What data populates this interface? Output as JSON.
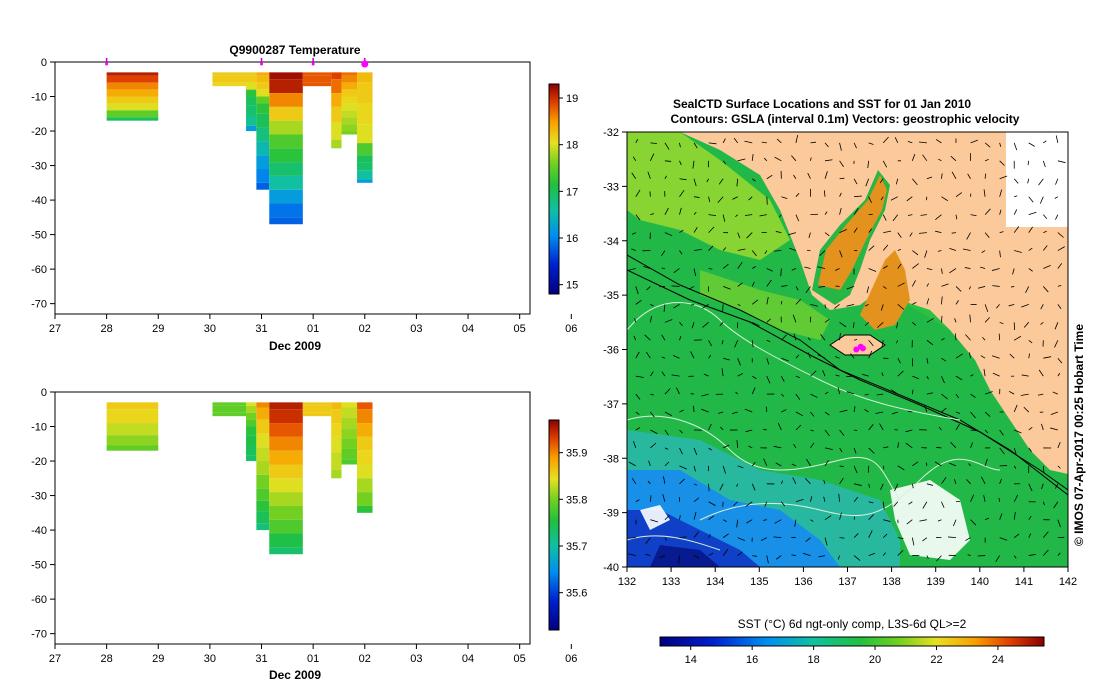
{
  "chart_data": [
    {
      "type": "heatmap",
      "id": "temperature-profile",
      "title": "Q9900287  Temperature",
      "xlabel": "Dec 2009",
      "ylabel": "",
      "x_ticks": [
        "27",
        "28",
        "29",
        "30",
        "31",
        "01",
        "02",
        "03",
        "04",
        "05",
        "06"
      ],
      "y_ticks": [
        0,
        -10,
        -20,
        -30,
        -40,
        -50,
        -60,
        -70
      ],
      "ylim": [
        -73,
        0
      ],
      "surface_markers": [
        28,
        31,
        32,
        33
      ],
      "colorbar": {
        "ticks": [
          15,
          16,
          17,
          18,
          19
        ],
        "range": [
          14.8,
          19.3
        ]
      },
      "profiles": [
        {
          "x0": 28.0,
          "x1": 29.0,
          "depths": [
            3,
            5,
            7,
            9,
            11,
            13,
            15,
            17
          ],
          "values": [
            19.1,
            18.9,
            18.6,
            18.4,
            18.2,
            18.0,
            17.5,
            17.0
          ]
        },
        {
          "x0": 30.05,
          "x1": 30.7,
          "depths": [
            3,
            5,
            7
          ],
          "values": [
            18.2,
            18.2,
            18.1
          ]
        },
        {
          "x0": 30.7,
          "x1": 30.9,
          "depths": [
            3,
            5,
            7,
            9,
            11,
            14,
            17,
            20
          ],
          "values": [
            18.2,
            18.2,
            18.0,
            17.2,
            17.0,
            16.9,
            16.7,
            16.2
          ]
        },
        {
          "x0": 30.9,
          "x1": 31.15,
          "depths": [
            3,
            5,
            7,
            9,
            11,
            13,
            17,
            21,
            25,
            29,
            33,
            37
          ],
          "values": [
            18.4,
            18.3,
            18.2,
            18.0,
            17.5,
            17.2,
            17.0,
            16.8,
            16.5,
            16.2,
            16.0,
            15.8
          ]
        },
        {
          "x0": 31.15,
          "x1": 31.8,
          "depths": [
            3,
            7,
            11,
            15,
            19,
            23,
            27,
            31,
            35,
            39,
            43,
            47
          ],
          "values": [
            19.2,
            19.1,
            18.6,
            18.2,
            17.8,
            17.4,
            17.2,
            16.9,
            16.6,
            16.2,
            15.9,
            15.8
          ]
        },
        {
          "x0": 31.8,
          "x1": 32.35,
          "depths": [
            3,
            5,
            7
          ],
          "values": [
            18.8,
            18.8,
            18.8
          ]
        },
        {
          "x0": 32.35,
          "x1": 32.55,
          "depths": [
            3,
            7,
            11,
            15,
            20,
            25
          ],
          "values": [
            18.9,
            18.7,
            18.4,
            18.2,
            18.0,
            17.8
          ]
        },
        {
          "x0": 32.55,
          "x1": 32.85,
          "depths": [
            3,
            5,
            7,
            9,
            11,
            13,
            15,
            17,
            19,
            21
          ],
          "values": [
            18.7,
            18.6,
            18.4,
            18.2,
            18.1,
            18.0,
            17.9,
            17.8,
            17.7,
            17.6
          ]
        },
        {
          "x0": 32.85,
          "x1": 33.15,
          "depths": [
            3,
            9,
            15,
            21,
            26,
            28,
            30,
            33,
            35
          ],
          "values": [
            18.3,
            18.2,
            18.1,
            18.0,
            17.4,
            17.0,
            16.9,
            16.6,
            16.2
          ]
        }
      ]
    },
    {
      "type": "heatmap",
      "id": "salinity-profile",
      "title": "",
      "xlabel": "Dec 2009",
      "ylabel": "",
      "x_ticks": [
        "27",
        "28",
        "29",
        "30",
        "31",
        "01",
        "02",
        "03",
        "04",
        "05",
        "06"
      ],
      "y_ticks": [
        0,
        -10,
        -20,
        -30,
        -40,
        -50,
        -60,
        -70
      ],
      "ylim": [
        -73,
        0
      ],
      "colorbar": {
        "ticks": [
          35.6,
          35.7,
          35.8,
          35.9
        ],
        "range": [
          35.52,
          35.97
        ]
      },
      "profiles": [
        {
          "x0": 28.0,
          "x1": 29.0,
          "depths": [
            3,
            7,
            11,
            14,
            17
          ],
          "values": [
            35.86,
            35.85,
            35.83,
            35.81,
            35.79
          ]
        },
        {
          "x0": 30.05,
          "x1": 30.7,
          "depths": [
            3,
            5,
            7
          ],
          "values": [
            35.79,
            35.79,
            35.79
          ]
        },
        {
          "x0": 30.7,
          "x1": 30.9,
          "depths": [
            3,
            5,
            7,
            9,
            11,
            14,
            17,
            20
          ],
          "values": [
            35.84,
            35.82,
            35.8,
            35.78,
            35.76,
            35.75,
            35.74,
            35.73
          ]
        },
        {
          "x0": 30.9,
          "x1": 31.15,
          "depths": [
            3,
            6,
            10,
            14,
            18,
            22,
            26,
            30,
            33,
            36,
            40
          ],
          "values": [
            35.9,
            35.88,
            35.86,
            35.84,
            35.83,
            35.82,
            35.8,
            35.78,
            35.76,
            35.74,
            35.72
          ]
        },
        {
          "x0": 31.15,
          "x1": 31.8,
          "depths": [
            3,
            7,
            11,
            15,
            19,
            23,
            27,
            31,
            35,
            39,
            43,
            47
          ],
          "values": [
            35.95,
            35.94,
            35.92,
            35.9,
            35.88,
            35.86,
            35.84,
            35.82,
            35.8,
            35.78,
            35.75,
            35.73
          ]
        },
        {
          "x0": 31.8,
          "x1": 32.35,
          "depths": [
            3,
            5,
            7
          ],
          "values": [
            35.86,
            35.86,
            35.86
          ]
        },
        {
          "x0": 32.35,
          "x1": 32.55,
          "depths": [
            3,
            7,
            11,
            15,
            20,
            25
          ],
          "values": [
            35.87,
            35.86,
            35.85,
            35.84,
            35.83,
            35.82
          ]
        },
        {
          "x0": 32.55,
          "x1": 32.85,
          "depths": [
            3,
            6,
            9,
            12,
            15,
            18,
            21
          ],
          "values": [
            35.84,
            35.83,
            35.82,
            35.81,
            35.8,
            35.79,
            35.78
          ]
        },
        {
          "x0": 32.85,
          "x1": 33.15,
          "depths": [
            3,
            7,
            11,
            15,
            19,
            23,
            27,
            31,
            35
          ],
          "values": [
            35.92,
            35.9,
            35.88,
            35.86,
            35.85,
            35.84,
            35.82,
            35.8,
            35.76
          ]
        }
      ]
    },
    {
      "type": "heatmap",
      "id": "sst-map",
      "title_line1": "SealCTD Surface Locations and SST for 01 Jan 2010",
      "title_line2": "Contours: GSLA (interval 0.1m) Vectors: geostrophic velocity",
      "x_ticks": [
        "132",
        "133",
        "134",
        "135",
        "136",
        "137",
        "138",
        "139",
        "140",
        "141",
        "142"
      ],
      "y_ticks": [
        "-32",
        "-33",
        "-34",
        "-35",
        "-36",
        "-37",
        "-38",
        "-39",
        "-40"
      ],
      "xlim": [
        132,
        142
      ],
      "ylim": [
        -40,
        -32
      ],
      "colorbar_label": "SST (°C) 6d ngt-only comp, L3S-6d QL>=2",
      "colorbar_ticks": [
        14,
        16,
        18,
        20,
        22,
        24
      ],
      "colorbar_range": [
        13,
        25.5
      ],
      "side_label": "© IMOS 07-Apr-2017 00:25 Hobart Time",
      "land_color": "#fcc99b",
      "ctd_marker_color": "#ff00ff",
      "ctd_locations": [
        [
          137.3,
          -35.95
        ],
        [
          137.2,
          -36.0
        ],
        [
          137.35,
          -35.98
        ]
      ]
    }
  ]
}
